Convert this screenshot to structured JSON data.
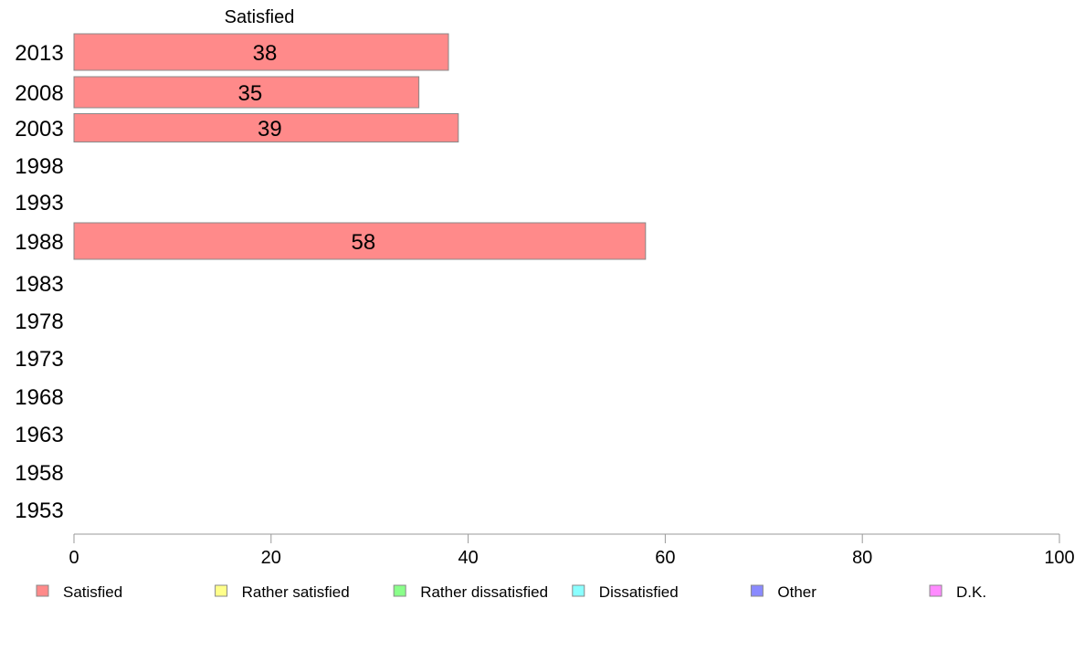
{
  "chart_data": {
    "type": "bar",
    "orientation": "horizontal",
    "header": "Satisfied",
    "categories": [
      "2013",
      "2008",
      "2003",
      "1998",
      "1993",
      "1988",
      "1983",
      "1978",
      "1973",
      "1968",
      "1963",
      "1958",
      "1953"
    ],
    "series": [
      {
        "name": "Satisfied",
        "color": "#ff8a8a",
        "values": [
          38,
          35,
          39,
          null,
          null,
          58,
          null,
          null,
          null,
          null,
          null,
          null,
          null
        ],
        "labels": [
          "38",
          "35",
          "39",
          "",
          "",
          "58",
          "",
          "",
          "",
          "",
          "",
          "",
          ""
        ]
      }
    ],
    "xlim": [
      0,
      100
    ],
    "xticks": [
      "0",
      "20",
      "40",
      "60",
      "80",
      "100"
    ],
    "grid": false,
    "legend_position": "bottom",
    "legend": [
      {
        "name": "Satisfied",
        "color": "#ff8a8a"
      },
      {
        "name": "Rather satisfied",
        "color": "#ffff8a"
      },
      {
        "name": "Rather dissatisfied",
        "color": "#8aff8a"
      },
      {
        "name": "Dissatisfied",
        "color": "#8affff"
      },
      {
        "name": "Other",
        "color": "#8a8aff"
      },
      {
        "name": "D.K.",
        "color": "#ff8aff"
      }
    ]
  }
}
